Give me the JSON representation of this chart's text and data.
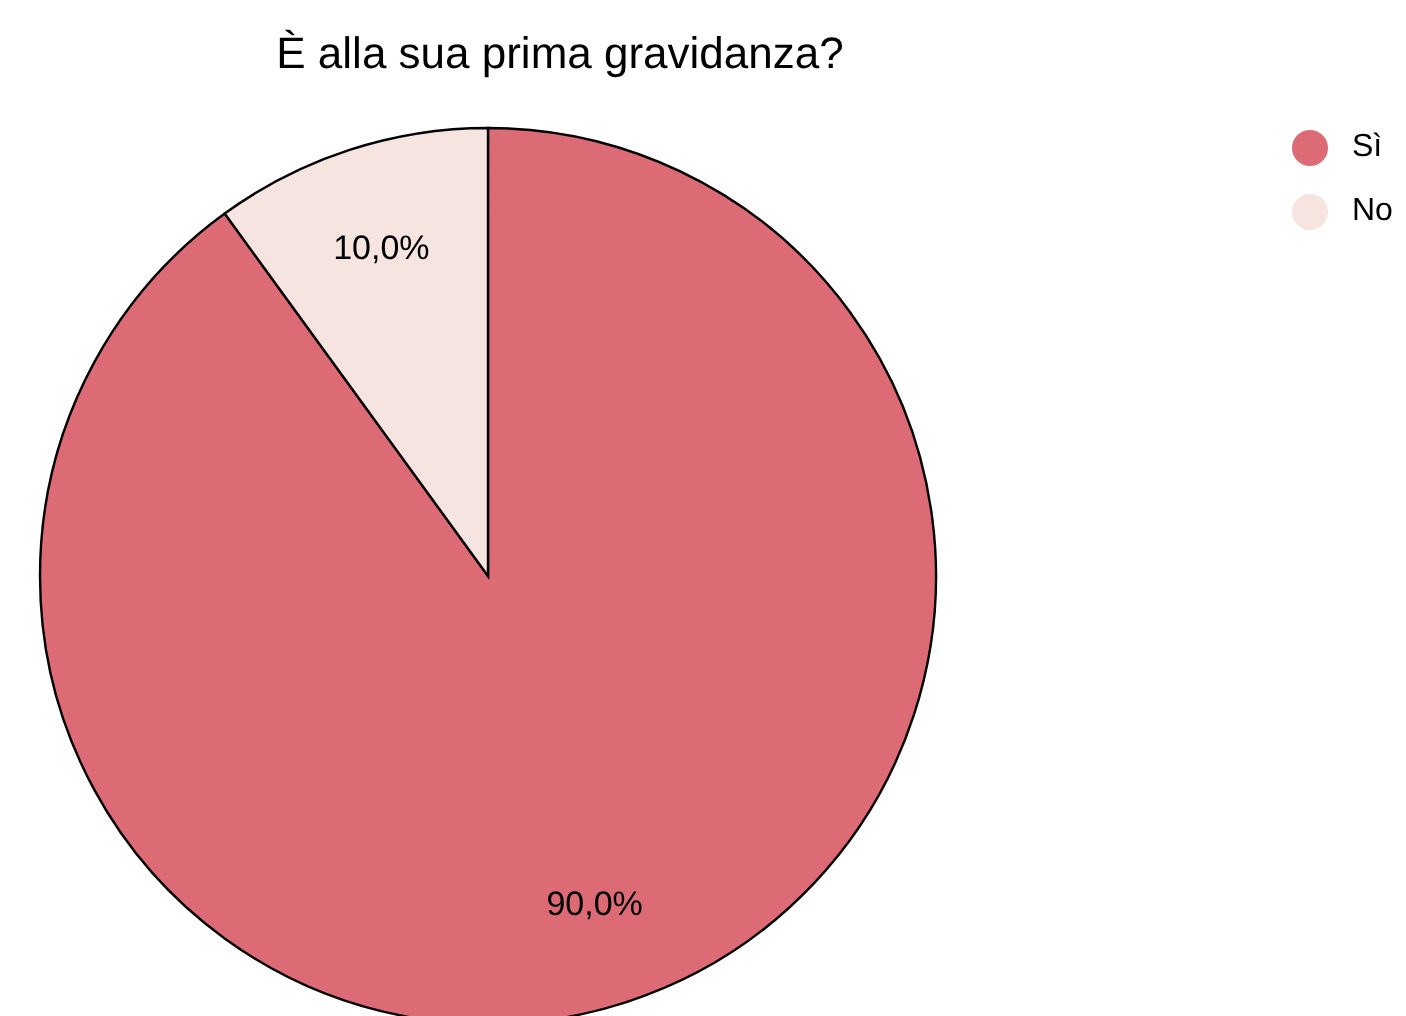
{
  "chart_data": {
    "type": "pie",
    "title": "È alla sua prima gravidanza?",
    "categories": [
      "Sì",
      "No"
    ],
    "values": [
      90,
      10
    ],
    "colors": [
      "#dd6b75",
      "#f5e4df"
    ],
    "value_labels": [
      "90,0%",
      "10,0%"
    ],
    "legend": "top right"
  }
}
